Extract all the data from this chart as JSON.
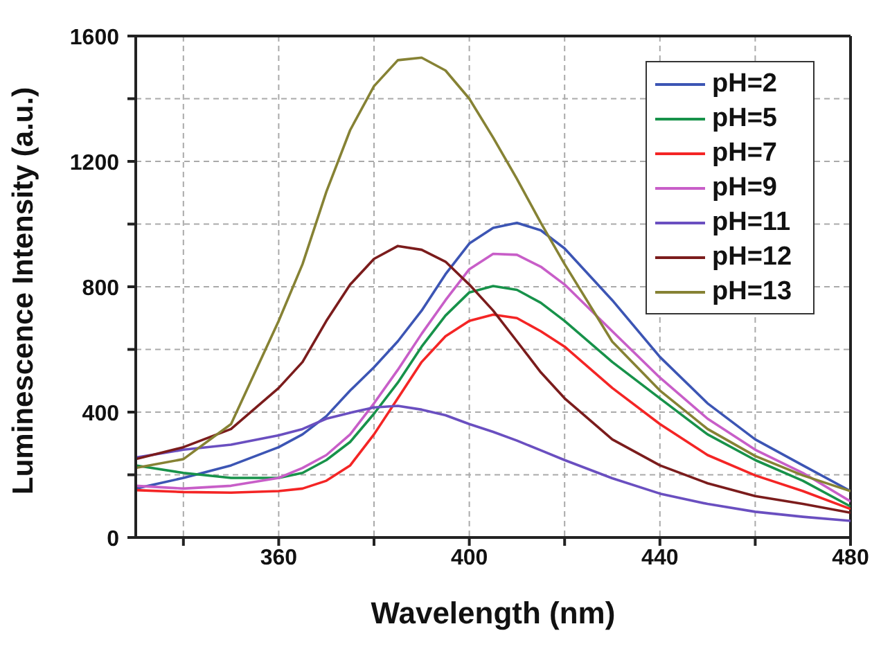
{
  "chart_data": {
    "type": "line",
    "xlabel": "Wavelength (nm)",
    "ylabel": "Luminescence Intensity (a.u.)",
    "x": [
      330,
      340,
      350,
      360,
      365,
      370,
      375,
      380,
      385,
      390,
      395,
      400,
      405,
      410,
      415,
      420,
      430,
      440,
      450,
      460,
      470,
      480
    ],
    "series": [
      {
        "name": "pH=2",
        "color": "#3c55b4",
        "values": [
          156,
          190,
          230,
          288,
          329,
          387,
          469,
          543,
          626,
          724,
          840,
          938,
          988,
          1004,
          980,
          922,
          757,
          576,
          428,
          313,
          230,
          148
        ]
      },
      {
        "name": "pH=5",
        "color": "#17924a",
        "values": [
          230,
          206,
          190,
          190,
          206,
          247,
          305,
          395,
          494,
          609,
          708,
          782,
          802,
          790,
          749,
          691,
          560,
          444,
          329,
          247,
          181,
          99
        ]
      },
      {
        "name": "pH=7",
        "color": "#f42525",
        "values": [
          151,
          145,
          143,
          148,
          156,
          181,
          230,
          329,
          444,
          560,
          642,
          691,
          711,
          700,
          658,
          609,
          477,
          362,
          263,
          198,
          148,
          91
        ]
      },
      {
        "name": "pH=9",
        "color": "#c85ec8",
        "values": [
          165,
          156,
          165,
          190,
          222,
          263,
          329,
          428,
          535,
          650,
          757,
          856,
          905,
          902,
          864,
          807,
          658,
          510,
          379,
          280,
          206,
          115
        ]
      },
      {
        "name": "pH=11",
        "color": "#6a4fc0",
        "values": [
          255,
          280,
          296,
          326,
          346,
          379,
          398,
          415,
          420,
          408,
          390,
          362,
          337,
          309,
          278,
          247,
          189,
          140,
          107,
          82,
          66,
          53
        ]
      },
      {
        "name": "pH=12",
        "color": "#7b1c1c",
        "values": [
          250,
          288,
          346,
          477,
          560,
          691,
          807,
          889,
          930,
          918,
          880,
          807,
          724,
          626,
          527,
          444,
          313,
          230,
          173,
          132,
          107,
          79
        ]
      },
      {
        "name": "pH=13",
        "color": "#868234",
        "values": [
          222,
          250,
          362,
          691,
          872,
          1103,
          1300,
          1440,
          1523,
          1531,
          1490,
          1400,
          1276,
          1144,
          1004,
          872,
          625,
          469,
          346,
          260,
          198,
          148
        ]
      }
    ],
    "xlim": [
      330,
      480
    ],
    "xticks": [
      {
        "value": 340,
        "label": null
      },
      360,
      {
        "value": 380,
        "label": null
      },
      400,
      {
        "value": 420,
        "label": null
      },
      440,
      {
        "value": 460,
        "label": null
      },
      480
    ],
    "ylim": [
      0,
      1600
    ],
    "yticks": [
      0,
      {
        "value": 200,
        "label": null
      },
      400,
      {
        "value": 600,
        "label": null
      },
      800,
      {
        "value": 1000,
        "label": null
      },
      1200,
      {
        "value": 1400,
        "label": null
      },
      1600
    ],
    "grid": true,
    "legend": "top right",
    "marker": "none",
    "line_style": "solid"
  }
}
